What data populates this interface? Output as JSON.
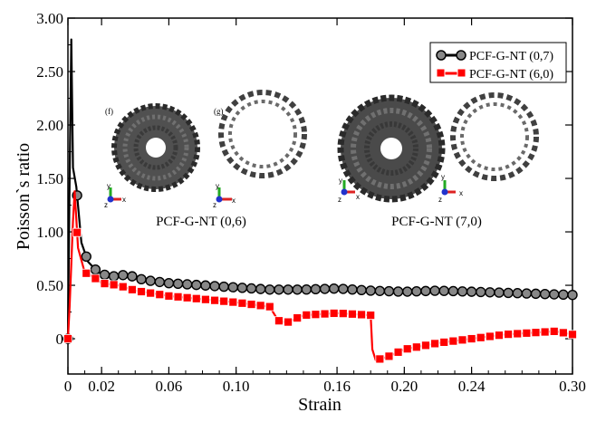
{
  "chart_data": {
    "type": "line",
    "xlabel": "Strain",
    "ylabel": "Poisson`s ratio",
    "xlim": [
      0,
      0.3
    ],
    "ylim": [
      -0.33,
      3.0
    ],
    "x_ticks": [
      {
        "value": 0,
        "label": "0"
      },
      {
        "value": 0.02,
        "label": "0.02"
      },
      {
        "value": 0.06,
        "label": "0.06"
      },
      {
        "value": 0.1,
        "label": "0.10"
      },
      {
        "value": 0.16,
        "label": "0.16"
      },
      {
        "value": 0.2,
        "label": "0.20"
      },
      {
        "value": 0.24,
        "label": "0.24"
      },
      {
        "value": 0.3,
        "label": "0.30"
      }
    ],
    "y_ticks": [
      {
        "value": 0,
        "label": "0"
      },
      {
        "value": 0.5,
        "label": "0.50"
      },
      {
        "value": 1.0,
        "label": "1.00"
      },
      {
        "value": 1.5,
        "label": "1.50"
      },
      {
        "value": 2.0,
        "label": "2.00"
      },
      {
        "value": 2.5,
        "label": "2.50"
      },
      {
        "value": 3.0,
        "label": "3.00"
      }
    ],
    "legend_position": "top-right",
    "series": [
      {
        "name": "PCF-G-NT (0,7)",
        "color": "#000000",
        "marker_fill": "#888888",
        "marker": "circle",
        "points": [
          [
            0,
            0
          ],
          [
            0.001,
            1.5
          ],
          [
            0.002,
            2.8
          ],
          [
            0.003,
            1.6
          ],
          [
            0.005,
            1.42
          ],
          [
            0.008,
            0.9
          ],
          [
            0.012,
            0.72
          ],
          [
            0.018,
            0.62
          ],
          [
            0.025,
            0.58
          ],
          [
            0.035,
            0.6
          ],
          [
            0.045,
            0.55
          ],
          [
            0.06,
            0.52
          ],
          [
            0.08,
            0.5
          ],
          [
            0.1,
            0.48
          ],
          [
            0.12,
            0.46
          ],
          [
            0.14,
            0.46
          ],
          [
            0.16,
            0.47
          ],
          [
            0.18,
            0.45
          ],
          [
            0.2,
            0.44
          ],
          [
            0.22,
            0.45
          ],
          [
            0.24,
            0.44
          ],
          [
            0.26,
            0.43
          ],
          [
            0.28,
            0.42
          ],
          [
            0.3,
            0.41
          ]
        ]
      },
      {
        "name": "PCF-G-NT (6,0)",
        "color": "#ff0000",
        "marker_fill": "#ff0000",
        "marker": "square",
        "points": [
          [
            0,
            0
          ],
          [
            0.001,
            0.3
          ],
          [
            0.003,
            1.1
          ],
          [
            0.004,
            1.38
          ],
          [
            0.006,
            0.85
          ],
          [
            0.01,
            0.62
          ],
          [
            0.015,
            0.58
          ],
          [
            0.02,
            0.52
          ],
          [
            0.03,
            0.5
          ],
          [
            0.04,
            0.45
          ],
          [
            0.06,
            0.4
          ],
          [
            0.08,
            0.37
          ],
          [
            0.1,
            0.34
          ],
          [
            0.12,
            0.3
          ],
          [
            0.125,
            0.17
          ],
          [
            0.13,
            0.15
          ],
          [
            0.14,
            0.22
          ],
          [
            0.16,
            0.24
          ],
          [
            0.18,
            0.22
          ],
          [
            0.181,
            -0.1
          ],
          [
            0.183,
            -0.2
          ],
          [
            0.19,
            -0.17
          ],
          [
            0.2,
            -0.1
          ],
          [
            0.22,
            -0.04
          ],
          [
            0.24,
            0.0
          ],
          [
            0.26,
            0.04
          ],
          [
            0.28,
            0.06
          ],
          [
            0.29,
            0.07
          ],
          [
            0.3,
            0.04
          ]
        ]
      }
    ],
    "annotations": {
      "panel_f": "(f)",
      "panel_g": "(g)",
      "inset_left_label": "PCF-G-NT (0,6)",
      "inset_right_label": "PCF-G-NT (7,0)",
      "triad_x": "x",
      "triad_y": "y",
      "triad_z": "z"
    }
  }
}
